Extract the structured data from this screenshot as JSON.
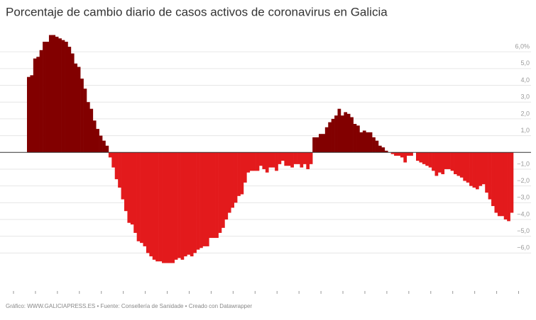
{
  "chart_data": {
    "type": "bar",
    "title": "Porcentaje de cambio diario de casos activos de coronavirus en Galicia",
    "footer": "Gráfico: WWW.GALICIAPRESS.ES • Fuente: Consellería de Sanidade • Creado con Datawrapper",
    "values": [
      4.5,
      4.6,
      5.6,
      5.7,
      6.1,
      6.6,
      6.6,
      7.0,
      7.0,
      6.9,
      6.8,
      6.7,
      6.6,
      6.3,
      5.9,
      5.3,
      5.1,
      4.4,
      3.8,
      3.0,
      2.6,
      1.9,
      1.4,
      1.0,
      0.7,
      0.4,
      -0.3,
      -0.9,
      -1.6,
      -2.1,
      -2.8,
      -3.5,
      -4.2,
      -4.3,
      -4.8,
      -5.3,
      -5.4,
      -5.6,
      -6.0,
      -6.2,
      -6.4,
      -6.5,
      -6.5,
      -6.6,
      -6.6,
      -6.6,
      -6.6,
      -6.4,
      -6.3,
      -6.4,
      -6.2,
      -6.1,
      -6.2,
      -6.0,
      -5.8,
      -5.7,
      -5.6,
      -5.6,
      -5.1,
      -5.1,
      -5.1,
      -4.8,
      -4.5,
      -4.0,
      -3.6,
      -3.3,
      -3.0,
      -2.6,
      -2.5,
      -1.8,
      -1.2,
      -1.1,
      -1.1,
      -1.1,
      -0.8,
      -1.0,
      -1.2,
      -0.9,
      -0.9,
      -1.1,
      -0.7,
      -0.5,
      -0.8,
      -0.8,
      -0.9,
      -0.7,
      -0.7,
      -0.9,
      -0.7,
      -1.0,
      -0.7,
      0.9,
      0.9,
      1.1,
      1.1,
      1.5,
      1.8,
      2.0,
      2.2,
      2.6,
      2.2,
      2.4,
      2.3,
      2.1,
      1.7,
      1.6,
      1.2,
      1.3,
      1.2,
      1.2,
      0.9,
      0.7,
      0.4,
      0.3,
      0.1,
      0.0,
      -0.1,
      -0.2,
      -0.2,
      -0.3,
      -0.6,
      -0.2,
      -0.2,
      0.0,
      -0.5,
      -0.6,
      -0.7,
      -0.8,
      -0.9,
      -1.1,
      -1.4,
      -1.2,
      -1.3,
      -1.0,
      -1.0,
      -1.1,
      -1.3,
      -1.4,
      -1.5,
      -1.7,
      -1.8,
      -2.0,
      -2.1,
      -2.2,
      -2.0,
      -1.9,
      -2.4,
      -2.8,
      -3.2,
      -3.6,
      -3.8,
      -3.8,
      -4.0,
      -4.1,
      -3.6
    ],
    "positive_color": "#820000",
    "negative_color": "#e31a1c",
    "ylim": [
      -7.8,
      7.4
    ],
    "yticks": [
      {
        "value": 6,
        "label": "6,0%"
      },
      {
        "value": 5,
        "label": "5,0"
      },
      {
        "value": 4,
        "label": "4,0"
      },
      {
        "value": 3,
        "label": "3,0"
      },
      {
        "value": 2,
        "label": "2,0"
      },
      {
        "value": 1,
        "label": "1,0"
      },
      {
        "value": -1,
        "label": "−1,0"
      },
      {
        "value": -2,
        "label": "−2,0"
      },
      {
        "value": -3,
        "label": "−3,0"
      },
      {
        "value": -4,
        "label": "−4,0"
      },
      {
        "value": -5,
        "label": "−5,0"
      },
      {
        "value": -6,
        "label": "−6,0"
      }
    ],
    "grid": true
  }
}
